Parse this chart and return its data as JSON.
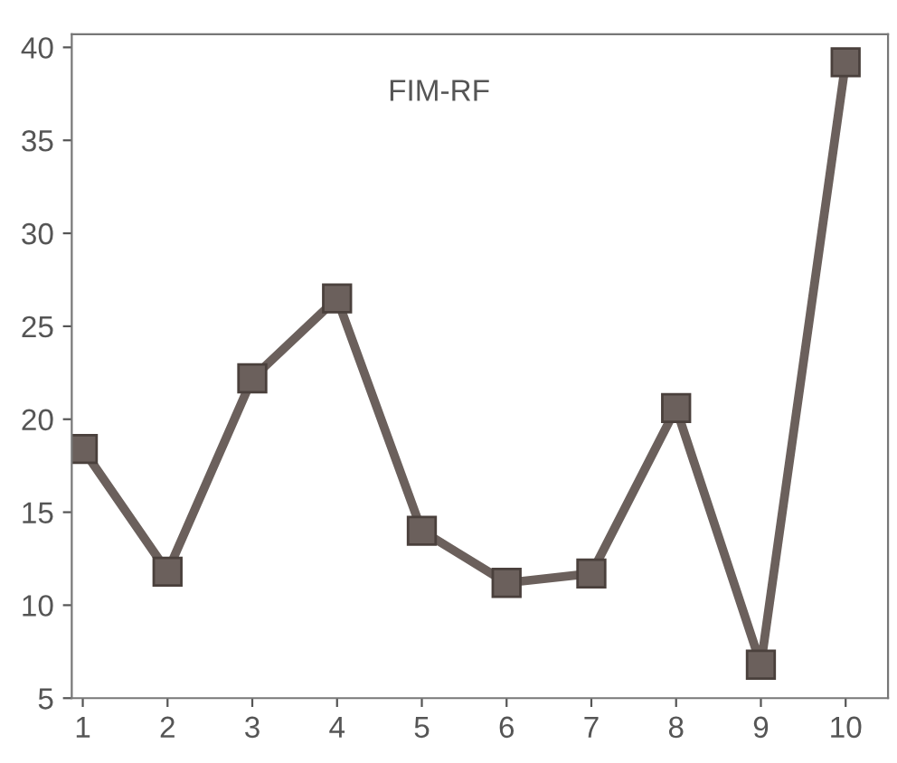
{
  "chart_data": {
    "type": "line",
    "title": "FIM-RF",
    "x": [
      1,
      2,
      3,
      4,
      5,
      6,
      7,
      8,
      9,
      10
    ],
    "series": [
      {
        "color": "#6b605c",
        "values": [
          18.4,
          11.8,
          22.2,
          26.5,
          14.0,
          11.2,
          11.7,
          20.6,
          6.8,
          39.2
        ]
      }
    ],
    "xlim": [
      0.87,
      10.5
    ],
    "xticks": [
      1,
      2,
      3,
      4,
      5,
      6,
      7,
      8,
      9,
      10
    ],
    "ylim": [
      5,
      40.7
    ],
    "yticks": [
      5,
      10,
      15,
      20,
      25,
      30,
      35,
      40
    ],
    "grid": false,
    "legend": false,
    "marker": "square",
    "line_style": "solid"
  }
}
